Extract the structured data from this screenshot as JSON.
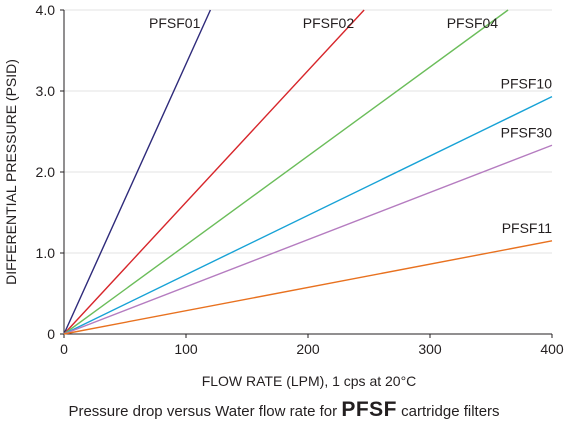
{
  "chart_data": {
    "type": "line",
    "xlabel": "FLOW RATE (LPM), 1 cps at 20°C",
    "ylabel": "DIFFERENTIAL PRESSURE (PSID)",
    "xlim": [
      0,
      400
    ],
    "ylim": [
      0,
      4.0
    ],
    "xticks": [
      0,
      100,
      200,
      300,
      400
    ],
    "xtick_labels": [
      "0",
      "100",
      "200",
      "300",
      "400"
    ],
    "yticks": [
      0,
      1.0,
      2.0,
      3.0,
      4.0
    ],
    "ytick_labels": [
      "0",
      "1.0",
      "2.0",
      "3.0",
      "4.0"
    ],
    "grid": "horizontal",
    "series": [
      {
        "name": "PFSF01",
        "color": "#2e2a7a",
        "x": [
          0,
          120
        ],
        "y": [
          0,
          4.0
        ]
      },
      {
        "name": "PFSF02",
        "color": "#d7262b",
        "x": [
          0,
          246
        ],
        "y": [
          0,
          4.0
        ]
      },
      {
        "name": "PFSF04",
        "color": "#6bbd5a",
        "x": [
          0,
          364
        ],
        "y": [
          0,
          4.0
        ]
      },
      {
        "name": "PFSF10",
        "color": "#17a2d6",
        "x": [
          0,
          400
        ],
        "y": [
          0,
          2.93
        ]
      },
      {
        "name": "PFSF30",
        "color": "#b57cc0",
        "x": [
          0,
          400
        ],
        "y": [
          0,
          2.33
        ]
      },
      {
        "name": "PFSF11",
        "color": "#e8711f",
        "x": [
          0,
          400
        ],
        "y": [
          0,
          1.15
        ]
      }
    ]
  },
  "caption": {
    "prefix": "Pressure drop versus Water flow rate for",
    "brand": "PFSF",
    "suffix": "cartridge filters"
  }
}
